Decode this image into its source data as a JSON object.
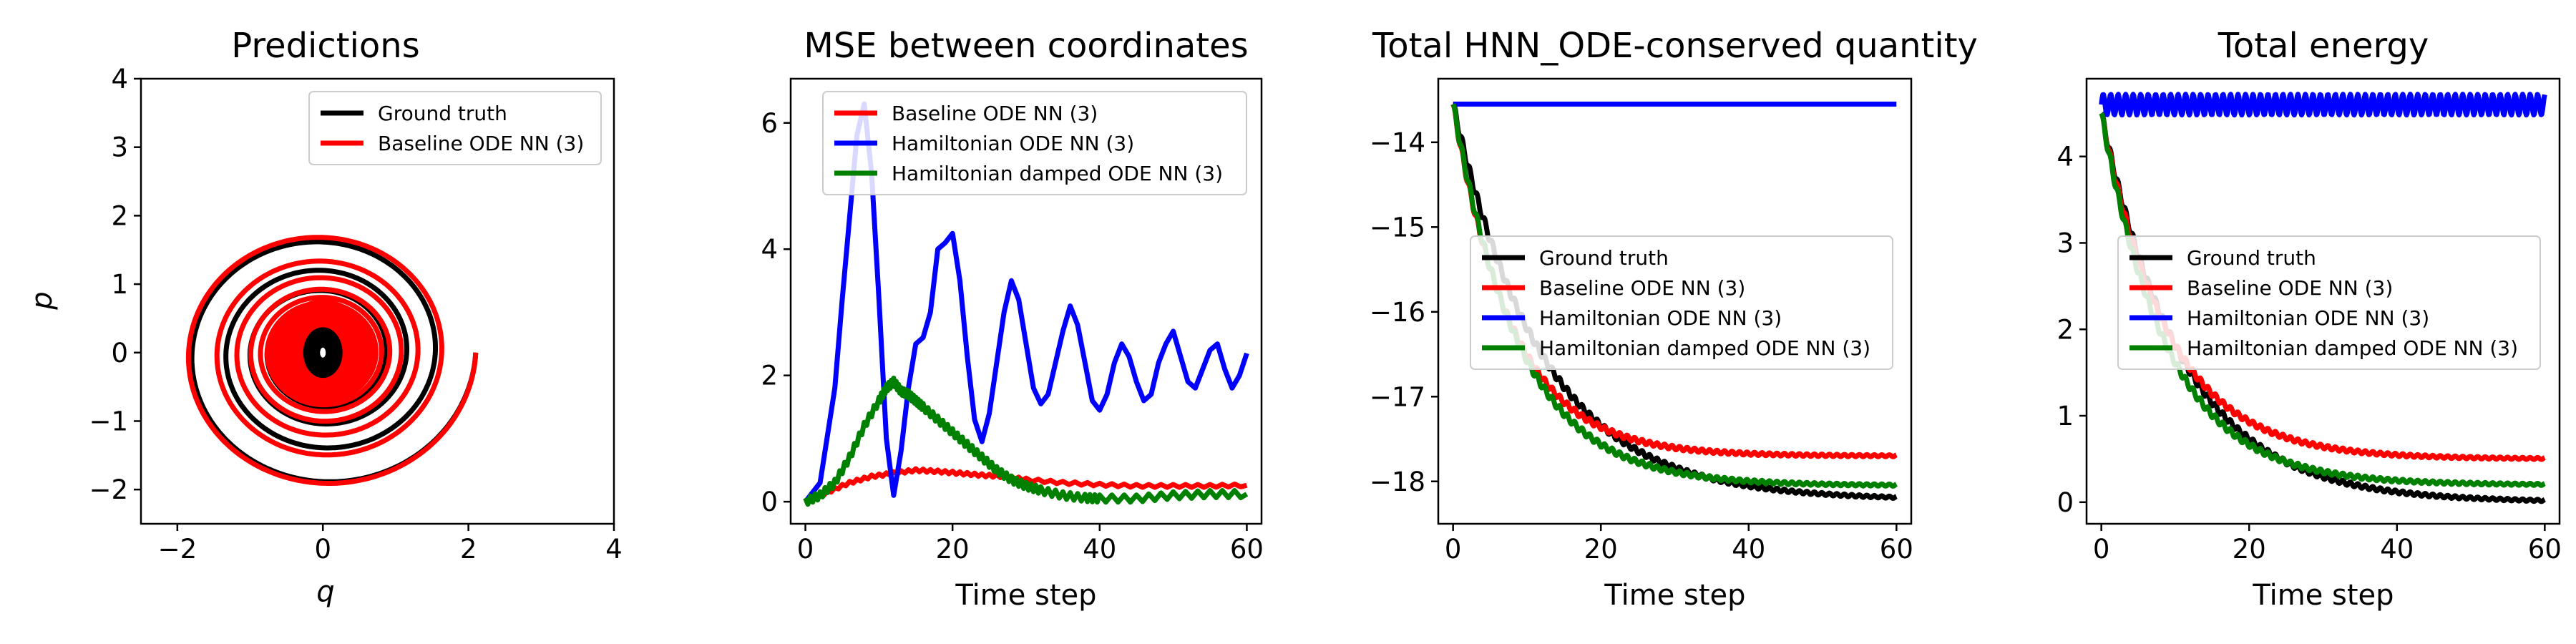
{
  "chart_data": [
    {
      "type": "line",
      "title": "Predictions",
      "xlabel": "q",
      "ylabel": "p",
      "xlim": [
        -2.5,
        4
      ],
      "ylim": [
        -2.5,
        4
      ],
      "xticks": [
        -2,
        0,
        2,
        4
      ],
      "yticks": [
        -2,
        -1,
        0,
        1,
        2,
        3,
        4
      ],
      "xtick_labels": [
        "−2",
        "0",
        "2",
        "4"
      ],
      "ytick_labels": [
        "−2",
        "−1",
        "0",
        "1",
        "2",
        "3",
        "4"
      ],
      "legend_position": "upper right",
      "series": [
        {
          "name": "Ground truth",
          "color": "#000000",
          "q0": 2.1,
          "amplitude_final": 0.2,
          "decay_rate": 0.055,
          "freq": 1.0,
          "t_max": 60
        },
        {
          "name": "Baseline ODE NN (3)",
          "color": "#ff0000",
          "q0": 2.1,
          "amplitude_final": 0.55,
          "decay_rate": 0.06,
          "freq": 1.05,
          "t_max": 60
        }
      ]
    },
    {
      "type": "line",
      "title": "MSE between coordinates",
      "xlabel": "Time step",
      "ylabel": "",
      "xlim": [
        -2,
        62
      ],
      "ylim": [
        -0.35,
        6.7
      ],
      "xticks": [
        0,
        20,
        40,
        60
      ],
      "yticks": [
        0,
        2,
        4,
        6
      ],
      "legend_position": "upper right",
      "series": [
        {
          "name": "Baseline ODE NN (3)",
          "color": "#ff0000",
          "x": [
            0,
            3,
            6,
            9,
            12,
            15,
            18,
            21,
            24,
            27,
            30,
            35,
            40,
            45,
            50,
            55,
            60
          ],
          "y": [
            0,
            0.15,
            0.3,
            0.4,
            0.45,
            0.5,
            0.48,
            0.45,
            0.42,
            0.4,
            0.35,
            0.3,
            0.27,
            0.25,
            0.25,
            0.25,
            0.26
          ]
        },
        {
          "name": "Hamiltonian ODE NN (3)",
          "color": "#0000ff",
          "x": [
            0,
            2,
            4,
            5,
            6,
            7,
            8,
            9,
            10,
            11,
            12,
            13,
            14,
            15,
            16,
            17,
            18,
            19,
            20,
            21,
            22,
            23,
            24,
            25,
            26,
            27,
            28,
            29,
            30,
            31,
            32,
            33,
            34,
            35,
            36,
            37,
            38,
            39,
            40,
            41,
            42,
            43,
            44,
            45,
            46,
            47,
            48,
            49,
            50,
            51,
            52,
            53,
            54,
            55,
            56,
            57,
            58,
            59,
            60
          ],
          "y": [
            0,
            0.3,
            1.8,
            3.2,
            4.5,
            5.8,
            6.3,
            5.2,
            3.2,
            1.0,
            0.1,
            0.8,
            1.8,
            2.5,
            2.6,
            3.0,
            4.0,
            4.1,
            4.25,
            3.5,
            2.3,
            1.3,
            0.95,
            1.4,
            2.2,
            3.0,
            3.5,
            3.2,
            2.5,
            1.8,
            1.55,
            1.7,
            2.2,
            2.7,
            3.1,
            2.8,
            2.2,
            1.6,
            1.45,
            1.7,
            2.2,
            2.5,
            2.3,
            1.9,
            1.6,
            1.7,
            2.2,
            2.5,
            2.7,
            2.3,
            1.9,
            1.8,
            2.1,
            2.4,
            2.5,
            2.1,
            1.8,
            2.0,
            2.35
          ]
        },
        {
          "name": "Hamiltonian damped ODE NN (3)",
          "color": "#008000",
          "x": [
            0,
            2,
            4,
            6,
            8,
            10,
            11,
            12,
            13,
            14,
            15,
            16,
            18,
            20,
            22,
            24,
            26,
            28,
            30,
            32,
            35,
            38,
            40,
            45,
            50,
            55,
            60
          ],
          "y": [
            0,
            0.1,
            0.3,
            0.7,
            1.2,
            1.6,
            1.8,
            1.9,
            1.75,
            1.7,
            1.6,
            1.5,
            1.3,
            1.1,
            0.9,
            0.7,
            0.5,
            0.35,
            0.25,
            0.18,
            0.1,
            0.06,
            0.05,
            0.05,
            0.1,
            0.12,
            0.12
          ]
        }
      ]
    },
    {
      "type": "line",
      "title": "Total HNN_ODE-conserved quantity",
      "xlabel": "Time step",
      "ylabel": "",
      "xlim": [
        -2,
        62
      ],
      "ylim": [
        -18.5,
        -13.25
      ],
      "xticks": [
        0,
        20,
        40,
        60
      ],
      "yticks": [
        -18,
        -17,
        -16,
        -15,
        -14
      ],
      "legend_position": "center right",
      "series": [
        {
          "name": "Ground truth",
          "color": "#000000",
          "start": -13.55,
          "end": -18.22,
          "tau": 12
        },
        {
          "name": "Baseline ODE NN (3)",
          "color": "#ff0000",
          "start": -13.55,
          "end": -17.7,
          "tau": 8
        },
        {
          "name": "Hamiltonian ODE NN (3)",
          "color": "#0000ff",
          "start": -13.55,
          "end": -13.55,
          "tau": 1
        },
        {
          "name": "Hamiltonian damped ODE NN (3)",
          "color": "#008000",
          "start": -13.55,
          "end": -18.05,
          "tau": 9
        }
      ]
    },
    {
      "type": "line",
      "title": "Total energy",
      "xlabel": "Time step",
      "ylabel": "",
      "xlim": [
        -2,
        62
      ],
      "ylim": [
        -0.25,
        4.9
      ],
      "xticks": [
        0,
        20,
        40,
        60
      ],
      "yticks": [
        0,
        1,
        2,
        3,
        4
      ],
      "legend_position": "center right",
      "series": [
        {
          "name": "Ground truth",
          "color": "#000000",
          "start": 4.5,
          "end": 0.0,
          "tau": 11
        },
        {
          "name": "Baseline ODE NN (3)",
          "color": "#ff0000",
          "start": 4.5,
          "end": 0.5,
          "tau": 9
        },
        {
          "name": "Hamiltonian ODE NN (3)",
          "color": "#0000ff",
          "start": 4.6,
          "end": 4.6,
          "tau": 1
        },
        {
          "name": "Hamiltonian damped ODE NN (3)",
          "color": "#008000",
          "start": 4.5,
          "end": 0.2,
          "tau": 9
        }
      ]
    }
  ]
}
